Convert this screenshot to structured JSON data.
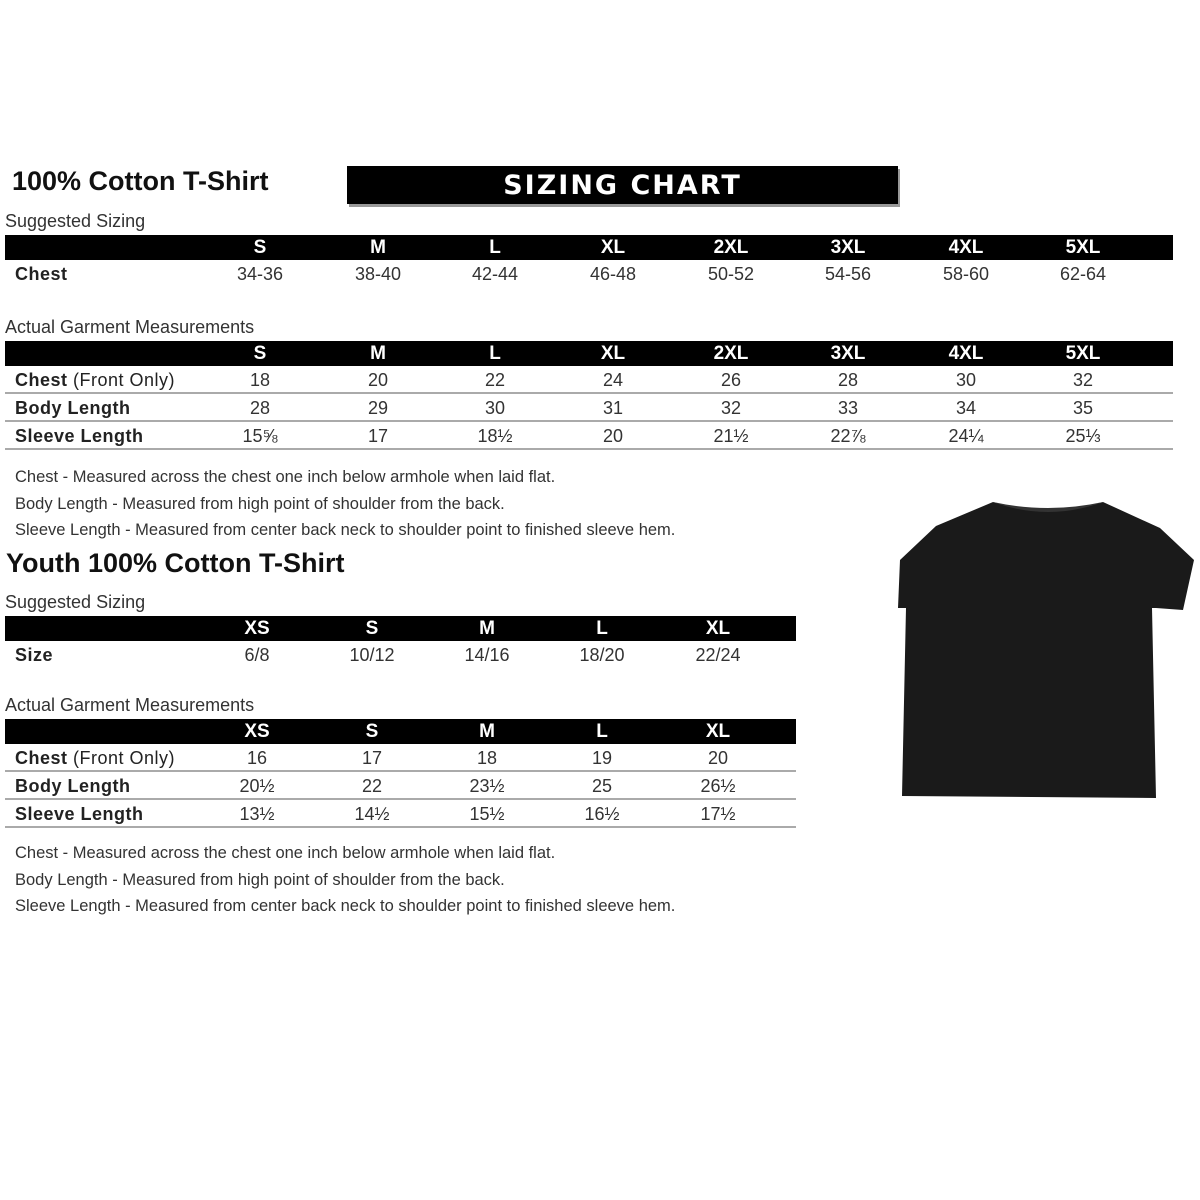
{
  "banner": "SIZING CHART",
  "adult": {
    "title": "100% Cotton T-Shirt",
    "suggested_label": "Suggested Sizing",
    "sizes": [
      "S",
      "M",
      "L",
      "XL",
      "2XL",
      "3XL",
      "4XL",
      "5XL"
    ],
    "suggested_rows": [
      {
        "label": "Chest",
        "extra": "",
        "values": [
          "34-36",
          "38-40",
          "42-44",
          "46-48",
          "50-52",
          "54-56",
          "58-60",
          "62-64"
        ]
      }
    ],
    "actual_label": "Actual Garment Measurements",
    "actual_rows": [
      {
        "label": "Chest",
        "extra": " (Front Only)",
        "values": [
          "18",
          "20",
          "22",
          "24",
          "26",
          "28",
          "30",
          "32"
        ]
      },
      {
        "label": "Body Length",
        "extra": "",
        "values": [
          "28",
          "29",
          "30",
          "31",
          "32",
          "33",
          "34",
          "35"
        ]
      },
      {
        "label": "Sleeve Length",
        "extra": "",
        "values": [
          "15⅝",
          "17",
          "18½",
          "20",
          "21½",
          "22⅞",
          "24¼",
          "25⅓"
        ]
      }
    ],
    "notes": [
      "Chest - Measured across the chest one inch below armhole when laid flat.",
      "Body Length - Measured from high point of shoulder from the back.",
      "Sleeve Length - Measured from center back neck to shoulder point to finished sleeve hem."
    ]
  },
  "youth": {
    "title": "Youth 100% Cotton T-Shirt",
    "suggested_label": "Suggested Sizing",
    "sizes": [
      "XS",
      "S",
      "M",
      "L",
      "XL"
    ],
    "suggested_rows": [
      {
        "label": "Size",
        "extra": "",
        "values": [
          "6/8",
          "10/12",
          "14/16",
          "18/20",
          "22/24"
        ]
      }
    ],
    "actual_label": "Actual Garment Measurements",
    "actual_rows": [
      {
        "label": "Chest",
        "extra": " (Front Only)",
        "values": [
          "16",
          "17",
          "18",
          "19",
          "20"
        ]
      },
      {
        "label": "Body Length",
        "extra": "",
        "values": [
          "20½",
          "22",
          "23½",
          "25",
          "26½"
        ]
      },
      {
        "label": "Sleeve Length",
        "extra": "",
        "values": [
          "13½",
          "14½",
          "15½",
          "16½",
          "17½"
        ]
      }
    ],
    "notes": [
      "Chest - Measured across the chest one inch below armhole when laid flat.",
      "Body Length - Measured from high point of shoulder from the back.",
      "Sleeve Length - Measured from center back neck to shoulder point to finished sleeve hem."
    ]
  },
  "image": {
    "icon": "t-shirt-icon",
    "color": "#1a1a1a"
  }
}
